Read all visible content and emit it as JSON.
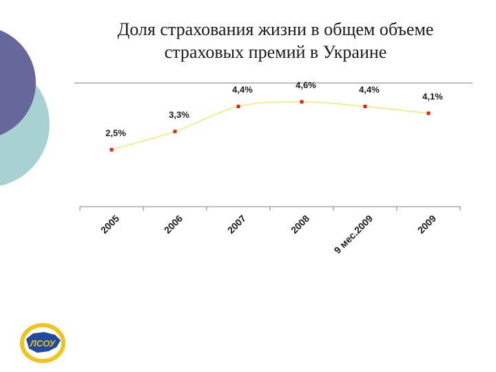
{
  "slide": {
    "title_line1": "Доля страхования жизни в общем объеме",
    "title_line2": "страховых премий в Украине",
    "logo_text": "ЛСОУ"
  },
  "colors": {
    "circle_dark": "#66679a",
    "circle_light": "#a8d2d2",
    "line": "#f5e86a",
    "marker": "#e0201a",
    "axis": "#7f7f7f"
  },
  "chart_data": {
    "type": "line",
    "title": "",
    "xlabel": "",
    "ylabel": "",
    "categories": [
      "2005",
      "2006",
      "2007",
      "2008",
      "9 мес.2009",
      "2009"
    ],
    "values": [
      2.5,
      3.3,
      4.4,
      4.6,
      4.4,
      4.1
    ],
    "data_labels": [
      "2,5%",
      "3,3%",
      "4,4%",
      "4,6%",
      "4,4%",
      "4,1%"
    ],
    "ylim": [
      0,
      5.2
    ],
    "grid": false,
    "legend": "none"
  }
}
